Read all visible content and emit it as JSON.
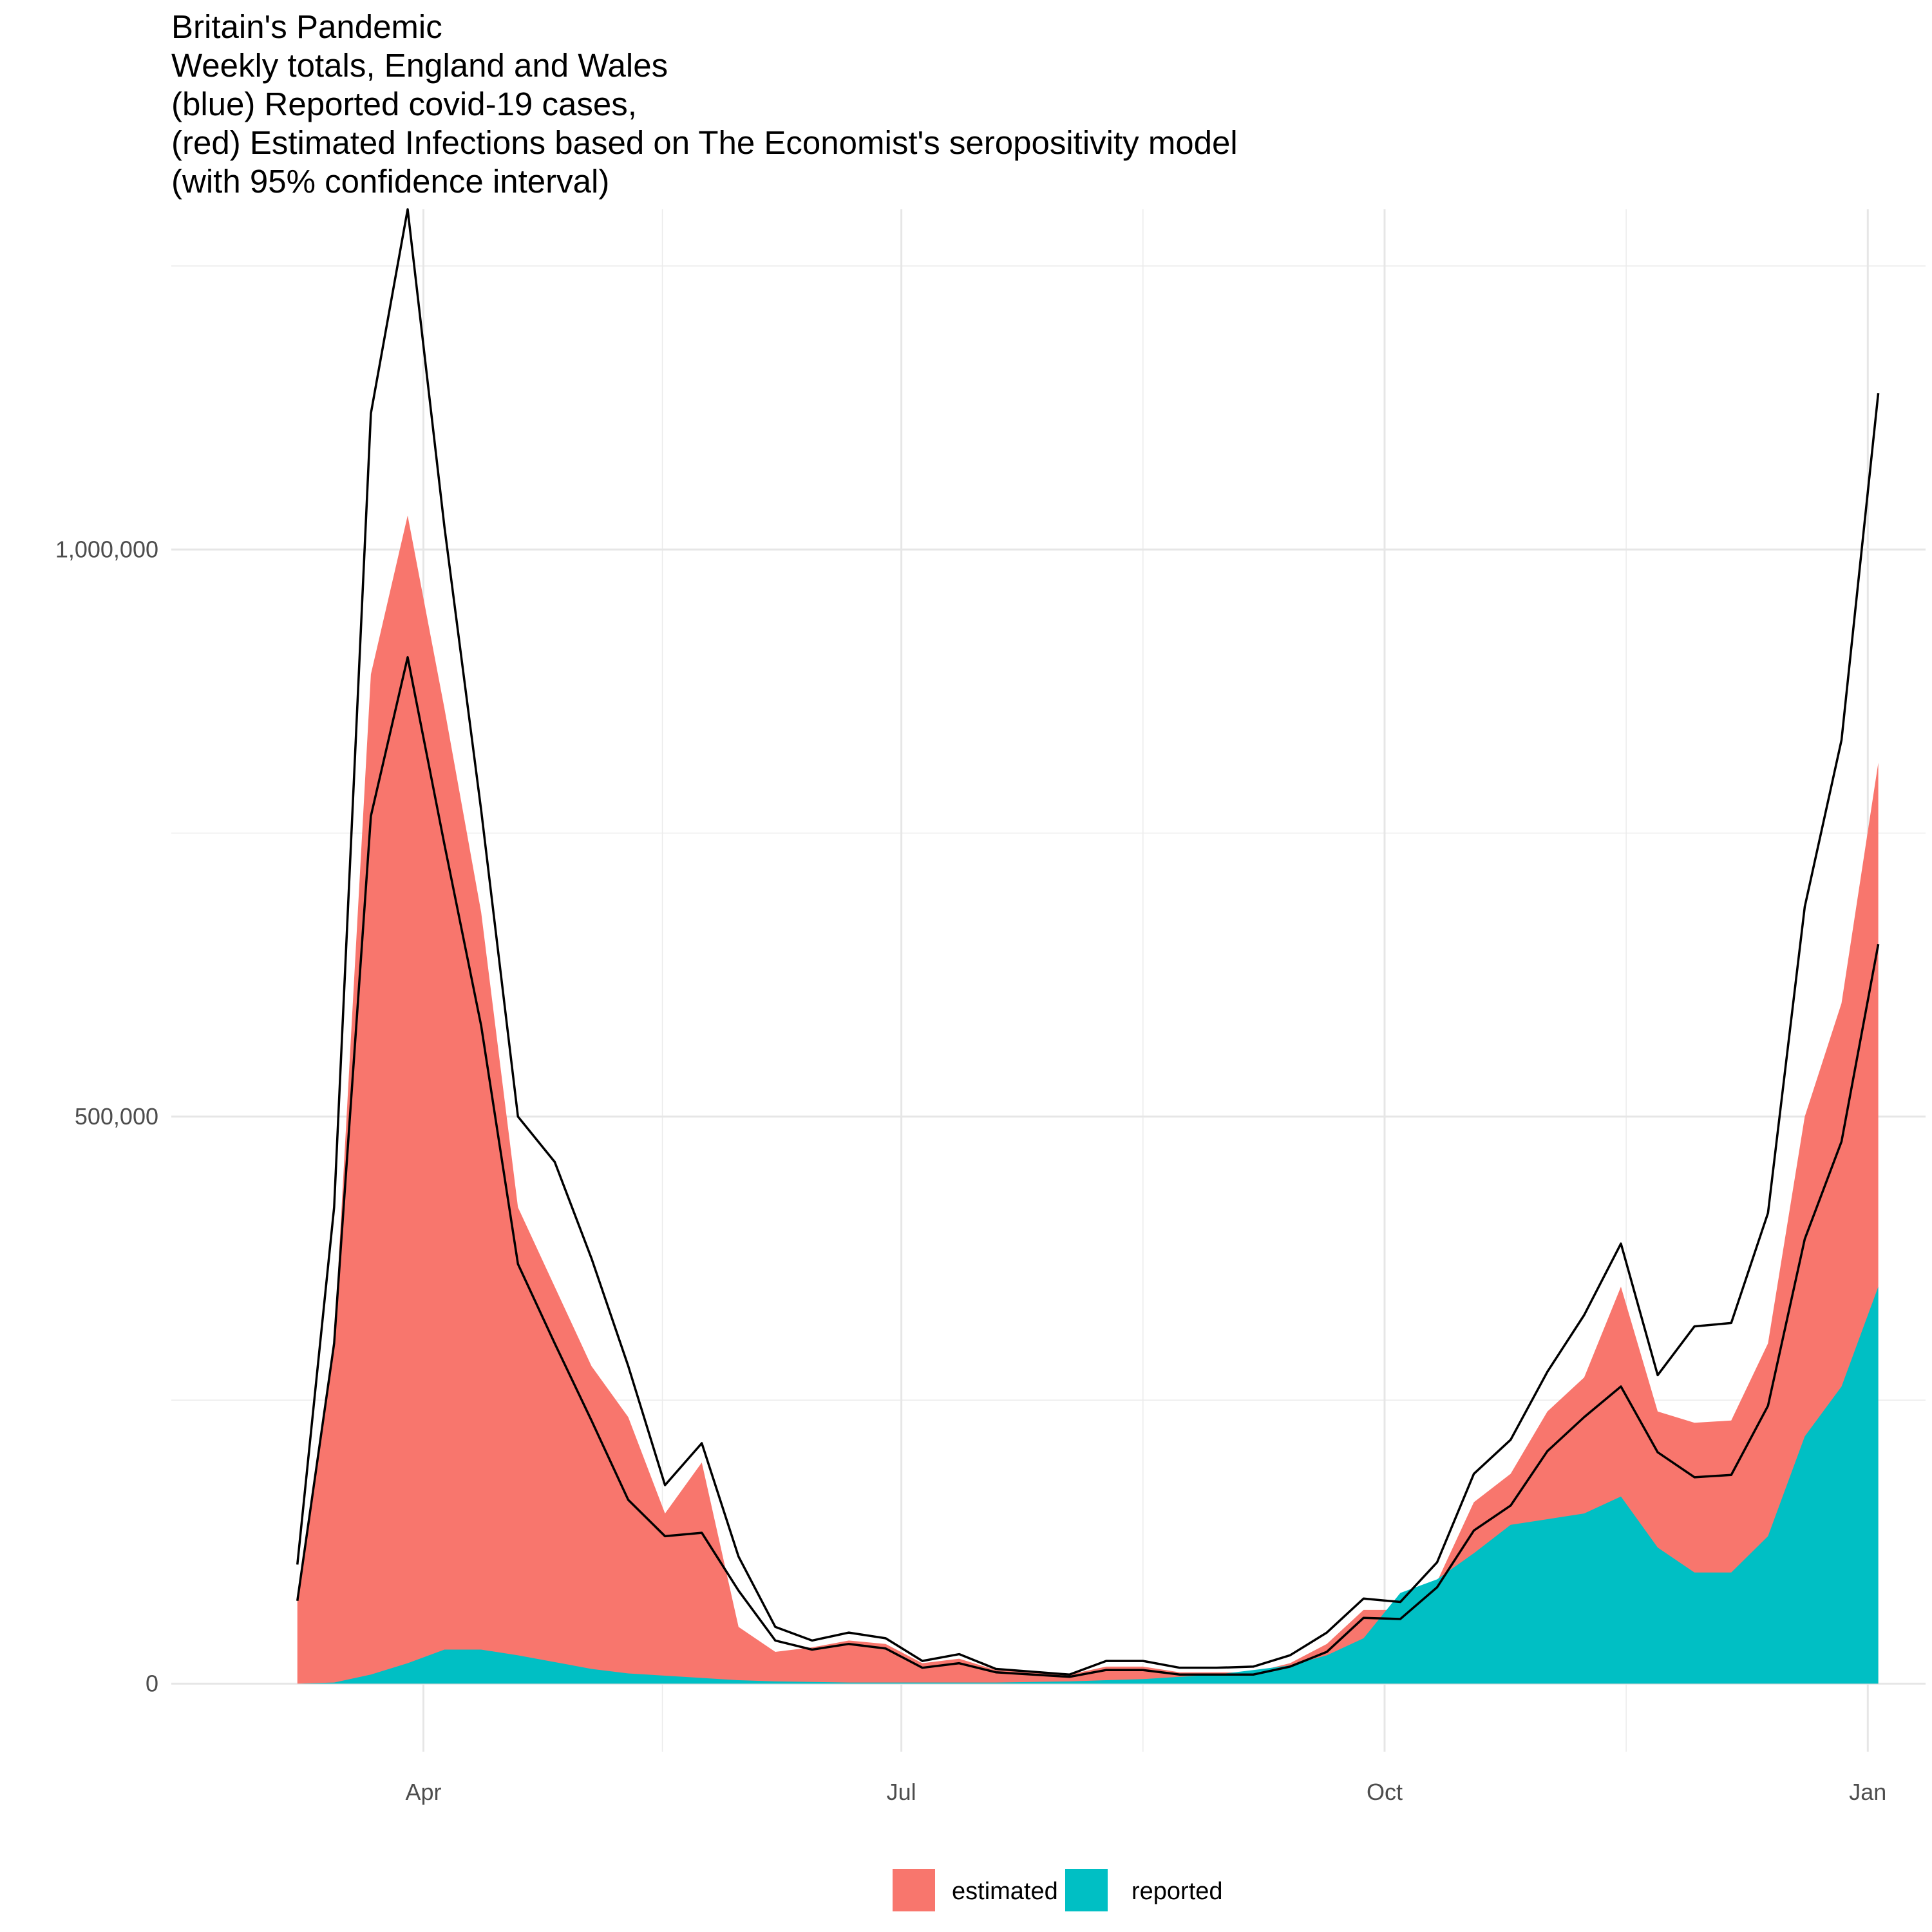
{
  "chart_data": {
    "type": "area",
    "title_lines": [
      "Britain's Pandemic",
      "Weekly totals, England and Wales",
      "(blue) Reported covid-19 cases,",
      "(red) Estimated Infections based on The Economist's seropositivity model",
      "(with 95% confidence interval)"
    ],
    "xlabel": "",
    "ylabel": "",
    "grid": true,
    "legend_position": "bottom",
    "x_range": [
      "2020-02-13",
      "2021-01-12"
    ],
    "ylim": [
      -60000,
      1300000
    ],
    "x_ticks": [
      {
        "date": "2020-04-01",
        "label": "Apr"
      },
      {
        "date": "2020-07-01",
        "label": "Jul"
      },
      {
        "date": "2020-10-01",
        "label": "Oct"
      },
      {
        "date": "2021-01-01",
        "label": "Jan"
      }
    ],
    "y_ticks": [
      {
        "value": 0,
        "label": "0"
      },
      {
        "value": 500000,
        "label": "500,000"
      },
      {
        "value": 1000000,
        "label": "1,000,000"
      }
    ],
    "x": [
      "2020-03-08",
      "2020-03-15",
      "2020-03-22",
      "2020-03-29",
      "2020-04-05",
      "2020-04-12",
      "2020-04-19",
      "2020-04-26",
      "2020-05-03",
      "2020-05-10",
      "2020-05-17",
      "2020-05-24",
      "2020-05-31",
      "2020-06-07",
      "2020-06-14",
      "2020-06-21",
      "2020-06-28",
      "2020-07-05",
      "2020-07-12",
      "2020-07-19",
      "2020-07-26",
      "2020-08-02",
      "2020-08-09",
      "2020-08-16",
      "2020-08-23",
      "2020-08-30",
      "2020-09-06",
      "2020-09-13",
      "2020-09-20",
      "2020-09-27",
      "2020-10-04",
      "2020-10-11",
      "2020-10-18",
      "2020-10-25",
      "2020-11-01",
      "2020-11-08",
      "2020-11-15",
      "2020-11-22",
      "2020-11-29",
      "2020-12-06",
      "2020-12-13",
      "2020-12-20",
      "2020-12-27",
      "2021-01-03"
    ],
    "series": [
      {
        "name": "estimated",
        "color": "#F8766D",
        "values": [
          75000,
          300000,
          890000,
          1030000,
          860000,
          680000,
          420000,
          350000,
          280000,
          235000,
          150000,
          195000,
          50000,
          28000,
          32000,
          38000,
          35000,
          18000,
          22000,
          12000,
          10000,
          8000,
          15000,
          15000,
          10000,
          10000,
          10000,
          18000,
          35000,
          65000,
          65000,
          90000,
          160000,
          185000,
          240000,
          270000,
          350000,
          240000,
          230000,
          232000,
          300000,
          500000,
          600000,
          812000
        ]
      },
      {
        "name": "reported",
        "color": "#00BFC4",
        "values": [
          0,
          1000,
          8000,
          18000,
          30000,
          30000,
          25000,
          19000,
          13000,
          9000,
          7000,
          5000,
          3000,
          2000,
          1500,
          1000,
          1000,
          1000,
          1000,
          1000,
          1500,
          2000,
          3000,
          4000,
          6000,
          8000,
          12000,
          16000,
          25000,
          40000,
          80000,
          92000,
          115000,
          140000,
          145000,
          150000,
          165000,
          120000,
          98000,
          98000,
          130000,
          218000,
          262000,
          350000
        ]
      }
    ],
    "ci_upper": [
      105000,
      420000,
      1120000,
      1300000,
      1020000,
      770000,
      500000,
      460000,
      375000,
      280000,
      175000,
      212000,
      112000,
      50000,
      38000,
      45000,
      40000,
      20000,
      26000,
      13000,
      10500,
      8000,
      20000,
      20000,
      14000,
      14000,
      15000,
      25000,
      45000,
      75000,
      72000,
      107000,
      185000,
      215000,
      275000,
      325000,
      388000,
      272000,
      315000,
      318000,
      415000,
      685000,
      832000,
      1138000
    ],
    "ci_lower": [
      73000,
      300000,
      765000,
      905000,
      740000,
      580000,
      370000,
      300000,
      232000,
      162000,
      130000,
      133000,
      82000,
      38000,
      30000,
      35000,
      31000,
      14000,
      18000,
      10000,
      8000,
      6000,
      12000,
      12000,
      8000,
      8000,
      8000,
      15000,
      28000,
      58000,
      57000,
      85000,
      135000,
      157000,
      205000,
      235000,
      262000,
      204000,
      182000,
      184000,
      245000,
      392000,
      478000,
      652000
    ]
  }
}
